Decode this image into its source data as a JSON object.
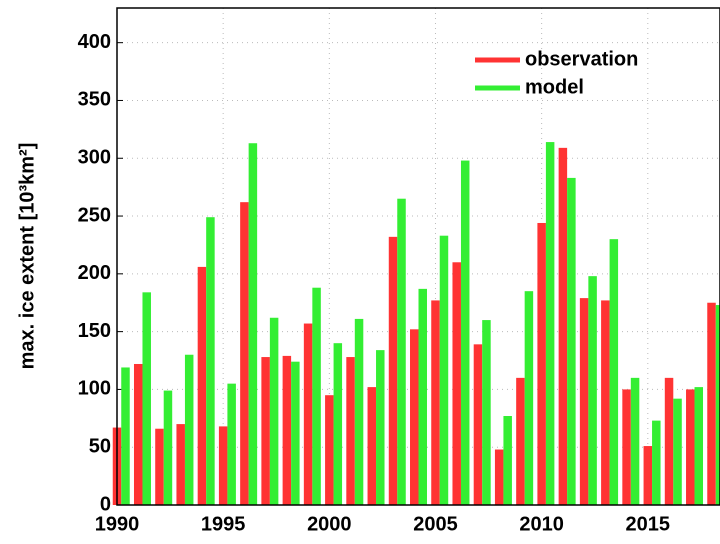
{
  "chart_data": {
    "type": "bar",
    "y_label": "max. ice extent [10³km²]",
    "x": [
      1990,
      1991,
      1992,
      1993,
      1994,
      1995,
      1996,
      1997,
      1998,
      1999,
      2000,
      2001,
      2002,
      2003,
      2004,
      2005,
      2006,
      2007,
      2008,
      2009,
      2010,
      2011,
      2012,
      2013,
      2014,
      2015,
      2016,
      2017,
      2018
    ],
    "series": [
      {
        "name": "observation",
        "color": "#ff3333",
        "values": [
          67,
          122,
          66,
          70,
          206,
          68,
          262,
          128,
          129,
          157,
          95,
          128,
          102,
          232,
          152,
          177,
          210,
          139,
          48,
          110,
          244,
          309,
          179,
          177,
          100,
          51,
          110,
          100,
          175
        ]
      },
      {
        "name": "model",
        "color": "#33ee33",
        "values": [
          119,
          184,
          99,
          130,
          249,
          105,
          313,
          162,
          124,
          188,
          140,
          161,
          134,
          265,
          187,
          233,
          298,
          160,
          77,
          185,
          314,
          283,
          198,
          230,
          110,
          73,
          92,
          102,
          173
        ]
      }
    ],
    "xlim": [
      1990,
      2018.4
    ],
    "ylim": [
      0,
      430
    ],
    "xticks": [
      1990,
      1995,
      2000,
      2005,
      2010,
      2015
    ],
    "yticks": [
      0,
      50,
      100,
      150,
      200,
      250,
      300,
      350,
      400
    ],
    "grid": true,
    "legend": "upper right"
  }
}
